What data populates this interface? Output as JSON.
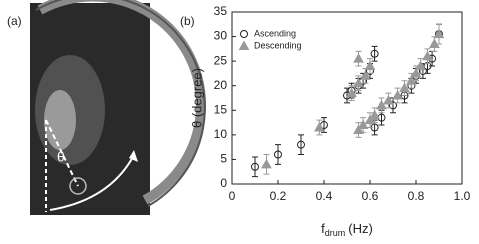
{
  "panel_a": {
    "label": "(a)",
    "symbol": "θ"
  },
  "chart_data": {
    "type": "scatter",
    "panel_label": "(b)",
    "xlabel": "f",
    "xlabel_sub": "drum",
    "xlabel_unit": "(Hz)",
    "ylabel": "θ (degree)",
    "xlim": [
      0,
      1
    ],
    "xticks": [
      0,
      0.2,
      0.4,
      0.6,
      0.8,
      {
        "value": 1,
        "label": "1.0"
      }
    ],
    "ylim": [
      0,
      35
    ],
    "yticks": [
      0,
      5,
      10,
      15,
      20,
      25,
      30,
      35
    ],
    "legend": "upper left",
    "series": [
      {
        "name": "Ascending",
        "marker": "circle",
        "color": "#222222",
        "x": [
          0.1,
          0.2,
          0.3,
          0.4,
          0.5,
          0.52,
          0.55,
          0.57,
          0.6,
          0.62,
          0.62,
          0.65,
          0.7,
          0.75,
          0.78,
          0.8,
          0.83,
          0.85,
          0.87,
          0.9
        ],
        "values": [
          3.5,
          6,
          8,
          12,
          18,
          19,
          20,
          21,
          23,
          26.5,
          11.5,
          13.5,
          16,
          18,
          20,
          22,
          23,
          24,
          25.5,
          30.5
        ],
        "errors": [
          2,
          2,
          2,
          1.5,
          1.5,
          1.5,
          1.5,
          1.5,
          1.5,
          1.5,
          1.5,
          1.5,
          1.5,
          1.5,
          1.5,
          1.5,
          1.5,
          1.5,
          1.5,
          2
        ]
      },
      {
        "name": "Descending",
        "marker": "triangle",
        "color": "#999999",
        "x": [
          0.15,
          0.38,
          0.52,
          0.55,
          0.55,
          0.58,
          0.6,
          0.55,
          0.57,
          0.6,
          0.62,
          0.65,
          0.68,
          0.72,
          0.75,
          0.78,
          0.8,
          0.82,
          0.85,
          0.88,
          0.9
        ],
        "values": [
          4,
          11.5,
          18.5,
          20.5,
          25.5,
          22,
          24,
          11,
          12,
          13,
          14,
          16,
          17,
          18,
          19.5,
          21,
          22.5,
          24,
          26,
          28.5,
          30.5
        ],
        "errors": [
          2,
          1.5,
          1.5,
          1.5,
          1.5,
          1.5,
          1.5,
          1.5,
          1.5,
          1.5,
          1.5,
          1.5,
          1.5,
          1.5,
          1.5,
          1.5,
          1.5,
          1.5,
          1.5,
          1.5,
          2
        ]
      }
    ]
  }
}
